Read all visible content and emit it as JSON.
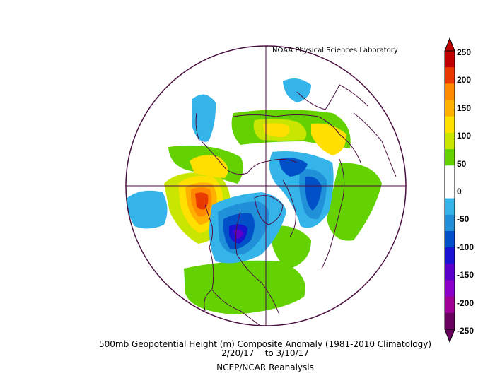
{
  "credit": "NOAA Physical Sciences Laboratory",
  "caption": {
    "line1": "500mb Geopotential Height (m) Composite Anomaly (1981-2010 Climatology)",
    "line2": "2/20/17    to 3/10/17",
    "line3": "NCEP/NCAR Reanalysis"
  },
  "colorbar": {
    "labels": [
      "250",
      "200",
      "150",
      "100",
      "50",
      "0",
      "-50",
      "-100",
      "-150",
      "-200",
      "-250"
    ],
    "colors": [
      "#c00000",
      "#e83a00",
      "#ff8a00",
      "#ffb000",
      "#ffe000",
      "#c8e600",
      "#64d200",
      "#ffffff",
      "#ffffff",
      "#34b4e8",
      "#2090d8",
      "#0050c8",
      "#1a14d2",
      "#5a00c8",
      "#8c00c8",
      "#a00096",
      "#6a0060"
    ]
  },
  "map": {
    "projection": "polar-stereographic-north",
    "background": "#ffffff",
    "border_color": "#4a0f3f",
    "coast_color": "#4a0f3f"
  }
}
